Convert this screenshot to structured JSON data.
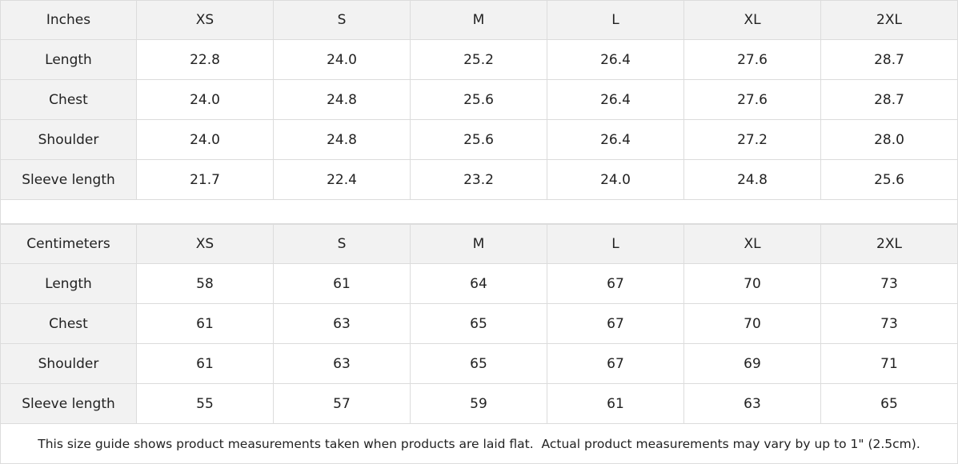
{
  "inches_table": {
    "header": [
      "Inches",
      "XS",
      "S",
      "M",
      "L",
      "XL",
      "2XL"
    ],
    "rows": [
      [
        "Length",
        "22.8",
        "24.0",
        "25.2",
        "26.4",
        "27.6",
        "28.7"
      ],
      [
        "Chest",
        "24.0",
        "24.8",
        "25.6",
        "26.4",
        "27.6",
        "28.7"
      ],
      [
        "Shoulder",
        "24.0",
        "24.8",
        "25.6",
        "26.4",
        "27.2",
        "28.0"
      ],
      [
        "Sleeve length",
        "21.7",
        "22.4",
        "23.2",
        "24.0",
        "24.8",
        "25.6"
      ]
    ]
  },
  "centimeters_table": {
    "header": [
      "Centimeters",
      "XS",
      "S",
      "M",
      "L",
      "XL",
      "2XL"
    ],
    "rows": [
      [
        "Length",
        "58",
        "61",
        "64",
        "67",
        "70",
        "73"
      ],
      [
        "Chest",
        "61",
        "63",
        "65",
        "67",
        "70",
        "73"
      ],
      [
        "Shoulder",
        "61",
        "63",
        "65",
        "67",
        "69",
        "71"
      ],
      [
        "Sleeve length",
        "55",
        "57",
        "59",
        "61",
        "63",
        "65"
      ]
    ]
  },
  "footnote": "This size guide shows product measurements taken when products are laid flat.  Actual product measurements may vary by up to 1\" (2.5cm)."
}
